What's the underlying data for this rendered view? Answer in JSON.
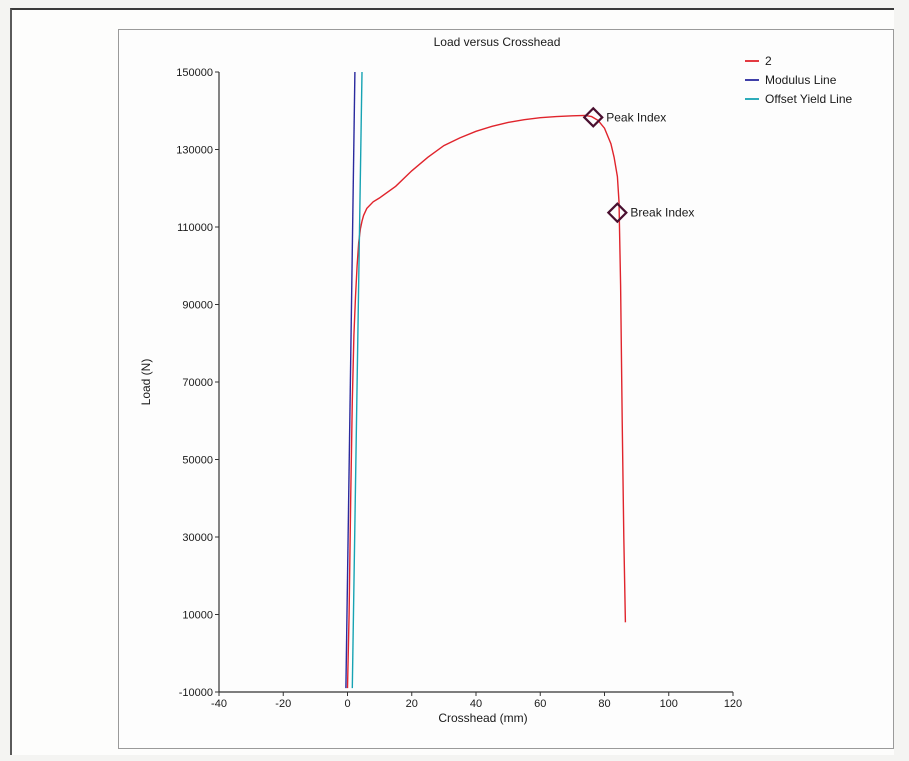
{
  "chart_data": {
    "type": "line",
    "title": "Load versus Crosshead",
    "xlabel": "Crosshead (mm)",
    "ylabel": "Load (N)",
    "xlim": [
      -40,
      120
    ],
    "ylim": [
      -10000,
      150000
    ],
    "xticks": [
      -40,
      -20,
      0,
      20,
      40,
      60,
      80,
      100,
      120
    ],
    "yticks": [
      -10000,
      10000,
      30000,
      50000,
      70000,
      90000,
      110000,
      130000,
      150000
    ],
    "grid": false,
    "legend_position": "top-right",
    "series": [
      {
        "name": "2",
        "color": "#e0242c",
        "x": [
          0,
          0.5,
          1,
          1.5,
          2,
          2.5,
          3,
          3.5,
          4,
          4.5,
          5,
          6,
          8,
          10,
          15,
          20,
          25,
          30,
          35,
          40,
          45,
          50,
          55,
          60,
          65,
          70,
          74,
          76,
          78,
          80,
          82,
          83,
          84,
          84.5,
          85,
          85.5,
          86,
          86.5
        ],
        "y": [
          -9000,
          10000,
          40000,
          65000,
          82000,
          92000,
          100000,
          106000,
          109500,
          111500,
          113000,
          114800,
          116500,
          117500,
          120500,
          124500,
          128000,
          131000,
          133000,
          134700,
          136000,
          137000,
          137700,
          138200,
          138500,
          138700,
          138800,
          138500,
          137500,
          135500,
          131500,
          128000,
          123000,
          116500,
          95000,
          60000,
          30000,
          8000
        ]
      },
      {
        "name": "Modulus Line",
        "color": "#2a2a9e",
        "x": [
          -0.5,
          2.3
        ],
        "y": [
          -9000,
          150000
        ]
      },
      {
        "name": "Offset Yield Line",
        "color": "#17a3b3",
        "x": [
          1.5,
          4.5
        ],
        "y": [
          -9000,
          150000
        ]
      }
    ],
    "annotations": [
      {
        "label": "Peak Index",
        "x": 76.5,
        "y": 138300
      },
      {
        "label": "Break Index",
        "x": 84,
        "y": 113700
      }
    ]
  }
}
